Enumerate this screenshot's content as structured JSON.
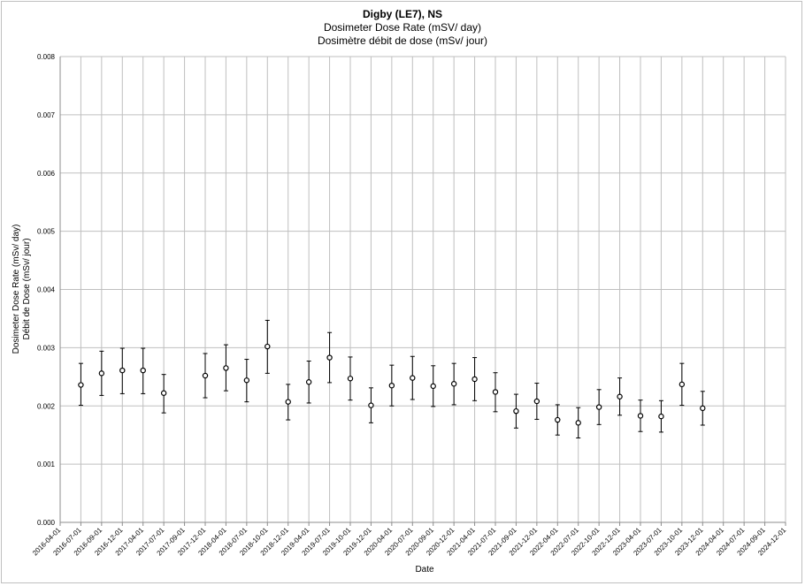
{
  "chart_data": {
    "type": "scatter",
    "title": "Digby (LE7), NS",
    "subtitle_en": "Dosimeter Dose Rate (mSV/ day)",
    "subtitle_fr": "Dosimètre débit de dose (mSv/ jour)",
    "ylabel_en": "Dosimeter Dose Rate (mSv/ day)",
    "ylabel_fr": "Débit de Dose (mSv/ jour)",
    "xlabel": "Date",
    "ylim": [
      0,
      0.008
    ],
    "yticks": [
      "0.000",
      "0.001",
      "0.002",
      "0.003",
      "0.004",
      "0.005",
      "0.006",
      "0.007",
      "0.008"
    ],
    "xticks": [
      "2016-04-01",
      "2016-07-01",
      "2016-09-01",
      "2016-12-01",
      "2017-04-01",
      "2017-07-01",
      "2017-09-01",
      "2017-12-01",
      "2018-04-01",
      "2018-07-01",
      "2018-10-01",
      "2018-12-01",
      "2019-04-01",
      "2019-07-01",
      "2019-10-01",
      "2019-12-01",
      "2020-04-01",
      "2020-07-01",
      "2020-09-01",
      "2020-12-01",
      "2021-04-01",
      "2021-07-01",
      "2021-09-01",
      "2021-12-01",
      "2022-04-01",
      "2022-07-01",
      "2022-10-01",
      "2022-12-01",
      "2023-04-01",
      "2023-07-01",
      "2023-10-01",
      "2023-12-01",
      "2024-04-01",
      "2024-07-01",
      "2024-09-01",
      "2024-12-01"
    ],
    "grid": true,
    "legend": "none",
    "marker": "open-circle",
    "error_bars": true,
    "points": [
      {
        "x": "2016-07-01",
        "y": 0.00236,
        "lo": 0.00201,
        "hi": 0.00273
      },
      {
        "x": "2016-09-01",
        "y": 0.00256,
        "lo": 0.00218,
        "hi": 0.00294
      },
      {
        "x": "2016-12-01",
        "y": 0.00261,
        "lo": 0.00221,
        "hi": 0.00299
      },
      {
        "x": "2017-04-01",
        "y": 0.00261,
        "lo": 0.00221,
        "hi": 0.00299
      },
      {
        "x": "2017-07-01",
        "y": 0.00222,
        "lo": 0.00188,
        "hi": 0.00254
      },
      {
        "x": "2017-12-01",
        "y": 0.00252,
        "lo": 0.00214,
        "hi": 0.0029
      },
      {
        "x": "2018-04-01",
        "y": 0.00265,
        "lo": 0.00226,
        "hi": 0.00305
      },
      {
        "x": "2018-07-01",
        "y": 0.00244,
        "lo": 0.00207,
        "hi": 0.0028
      },
      {
        "x": "2018-10-01",
        "y": 0.00302,
        "lo": 0.00256,
        "hi": 0.00347
      },
      {
        "x": "2018-12-01",
        "y": 0.00207,
        "lo": 0.00176,
        "hi": 0.00237
      },
      {
        "x": "2019-04-01",
        "y": 0.00241,
        "lo": 0.00205,
        "hi": 0.00277
      },
      {
        "x": "2019-07-01",
        "y": 0.00283,
        "lo": 0.0024,
        "hi": 0.00326
      },
      {
        "x": "2019-10-01",
        "y": 0.00247,
        "lo": 0.0021,
        "hi": 0.00284
      },
      {
        "x": "2019-12-01",
        "y": 0.00201,
        "lo": 0.00171,
        "hi": 0.00231
      },
      {
        "x": "2020-04-01",
        "y": 0.00235,
        "lo": 0.002,
        "hi": 0.0027
      },
      {
        "x": "2020-07-01",
        "y": 0.00248,
        "lo": 0.00211,
        "hi": 0.00285
      },
      {
        "x": "2020-09-01",
        "y": 0.00234,
        "lo": 0.00199,
        "hi": 0.00269
      },
      {
        "x": "2020-12-01",
        "y": 0.00238,
        "lo": 0.00202,
        "hi": 0.00273
      },
      {
        "x": "2021-04-01",
        "y": 0.00246,
        "lo": 0.00209,
        "hi": 0.00283
      },
      {
        "x": "2021-07-01",
        "y": 0.00224,
        "lo": 0.0019,
        "hi": 0.00257
      },
      {
        "x": "2021-09-01",
        "y": 0.00191,
        "lo": 0.00162,
        "hi": 0.0022
      },
      {
        "x": "2021-12-01",
        "y": 0.00208,
        "lo": 0.00177,
        "hi": 0.00239
      },
      {
        "x": "2022-04-01",
        "y": 0.00176,
        "lo": 0.0015,
        "hi": 0.00202
      },
      {
        "x": "2022-07-01",
        "y": 0.00171,
        "lo": 0.00145,
        "hi": 0.00197
      },
      {
        "x": "2022-10-01",
        "y": 0.00198,
        "lo": 0.00168,
        "hi": 0.00228
      },
      {
        "x": "2022-12-01",
        "y": 0.00216,
        "lo": 0.00184,
        "hi": 0.00248
      },
      {
        "x": "2023-04-01",
        "y": 0.00183,
        "lo": 0.00156,
        "hi": 0.0021
      },
      {
        "x": "2023-07-01",
        "y": 0.00182,
        "lo": 0.00155,
        "hi": 0.00209
      },
      {
        "x": "2023-10-01",
        "y": 0.00237,
        "lo": 0.00201,
        "hi": 0.00273
      },
      {
        "x": "2023-12-01",
        "y": 0.00196,
        "lo": 0.00167,
        "hi": 0.00225
      }
    ],
    "colors": {
      "grid": "#bfbfbf",
      "axis": "#8c8c8c",
      "marker": "#000000",
      "text": "#000000"
    }
  }
}
